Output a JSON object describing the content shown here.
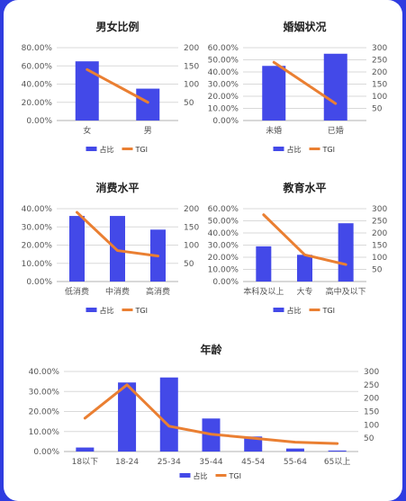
{
  "colors": {
    "bar": "#4349e8",
    "line": "#ea7f32",
    "grid": "#d9d9d9",
    "axis": "#b0b0b0"
  },
  "chart_data": [
    {
      "type": "bar",
      "title": "男女比例",
      "categories": [
        "女",
        "男"
      ],
      "series": [
        {
          "name": "占比",
          "type": "bar",
          "axis": "left",
          "values": [
            0.65,
            0.35
          ]
        },
        {
          "name": "TGI",
          "type": "line",
          "axis": "right",
          "values": [
            140,
            50
          ]
        }
      ],
      "yleft": {
        "min": 0,
        "max": 0.8,
        "step": 0.2,
        "ticks": [
          "0.00%",
          "20.00%",
          "40.00%",
          "60.00%",
          "80.00%"
        ]
      },
      "yright": {
        "min": 0,
        "max": 200,
        "step": 50,
        "ticks": [
          "",
          "50",
          "100",
          "150",
          "200"
        ]
      },
      "legend": "bottom"
    },
    {
      "type": "bar",
      "title": "婚姻状况",
      "categories": [
        "未婚",
        "已婚"
      ],
      "series": [
        {
          "name": "占比",
          "type": "bar",
          "axis": "left",
          "values": [
            0.45,
            0.55
          ]
        },
        {
          "name": "TGI",
          "type": "line",
          "axis": "right",
          "values": [
            240,
            70
          ]
        }
      ],
      "yleft": {
        "min": 0,
        "max": 0.6,
        "step": 0.1,
        "ticks": [
          "0.00%",
          "10.00%",
          "20.00%",
          "30.00%",
          "40.00%",
          "50.00%",
          "60.00%"
        ]
      },
      "yright": {
        "min": 0,
        "max": 300,
        "step": 50,
        "ticks": [
          "",
          "50",
          "100",
          "150",
          "200",
          "250",
          "300"
        ]
      },
      "legend": "bottom"
    },
    {
      "type": "bar",
      "title": "消费水平",
      "categories": [
        "低消费",
        "中消费",
        "高消费"
      ],
      "series": [
        {
          "name": "占比",
          "type": "bar",
          "axis": "left",
          "values": [
            0.36,
            0.36,
            0.285
          ]
        },
        {
          "name": "TGI",
          "type": "line",
          "axis": "right",
          "values": [
            190,
            85,
            70
          ]
        }
      ],
      "yleft": {
        "min": 0,
        "max": 0.4,
        "step": 0.1,
        "ticks": [
          "0.00%",
          "10.00%",
          "20.00%",
          "30.00%",
          "40.00%"
        ]
      },
      "yright": {
        "min": 0,
        "max": 200,
        "step": 50,
        "ticks": [
          "",
          "50",
          "100",
          "150",
          "200"
        ]
      },
      "legend": "bottom"
    },
    {
      "type": "bar",
      "title": "教育水平",
      "categories": [
        "本科及以上",
        "大专",
        "高中及以下"
      ],
      "series": [
        {
          "name": "占比",
          "type": "bar",
          "axis": "left",
          "values": [
            0.29,
            0.22,
            0.48
          ]
        },
        {
          "name": "TGI",
          "type": "line",
          "axis": "right",
          "values": [
            275,
            110,
            70
          ]
        }
      ],
      "yleft": {
        "min": 0,
        "max": 0.6,
        "step": 0.1,
        "ticks": [
          "0.00%",
          "10.00%",
          "20.00%",
          "30.00%",
          "40.00%",
          "50.00%",
          "60.00%"
        ]
      },
      "yright": {
        "min": 0,
        "max": 300,
        "step": 50,
        "ticks": [
          "",
          "50",
          "100",
          "150",
          "200",
          "250",
          "300"
        ]
      },
      "legend": "bottom"
    },
    {
      "type": "bar",
      "title": "年龄",
      "categories": [
        "18以下",
        "18-24",
        "25-34",
        "35-44",
        "45-54",
        "55-64",
        "65以上"
      ],
      "series": [
        {
          "name": "占比",
          "type": "bar",
          "axis": "left",
          "values": [
            0.02,
            0.345,
            0.37,
            0.165,
            0.075,
            0.015,
            0.005
          ]
        },
        {
          "name": "TGI",
          "type": "line",
          "axis": "right",
          "values": [
            125,
            250,
            95,
            65,
            50,
            35,
            30
          ]
        }
      ],
      "yleft": {
        "min": 0,
        "max": 0.4,
        "step": 0.1,
        "ticks": [
          "0.00%",
          "10.00%",
          "20.00%",
          "30.00%",
          "40.00%"
        ]
      },
      "yright": {
        "min": 0,
        "max": 300,
        "step": 50,
        "ticks": [
          "",
          "50",
          "100",
          "150",
          "200",
          "250",
          "300"
        ]
      },
      "legend": "bottom"
    }
  ]
}
